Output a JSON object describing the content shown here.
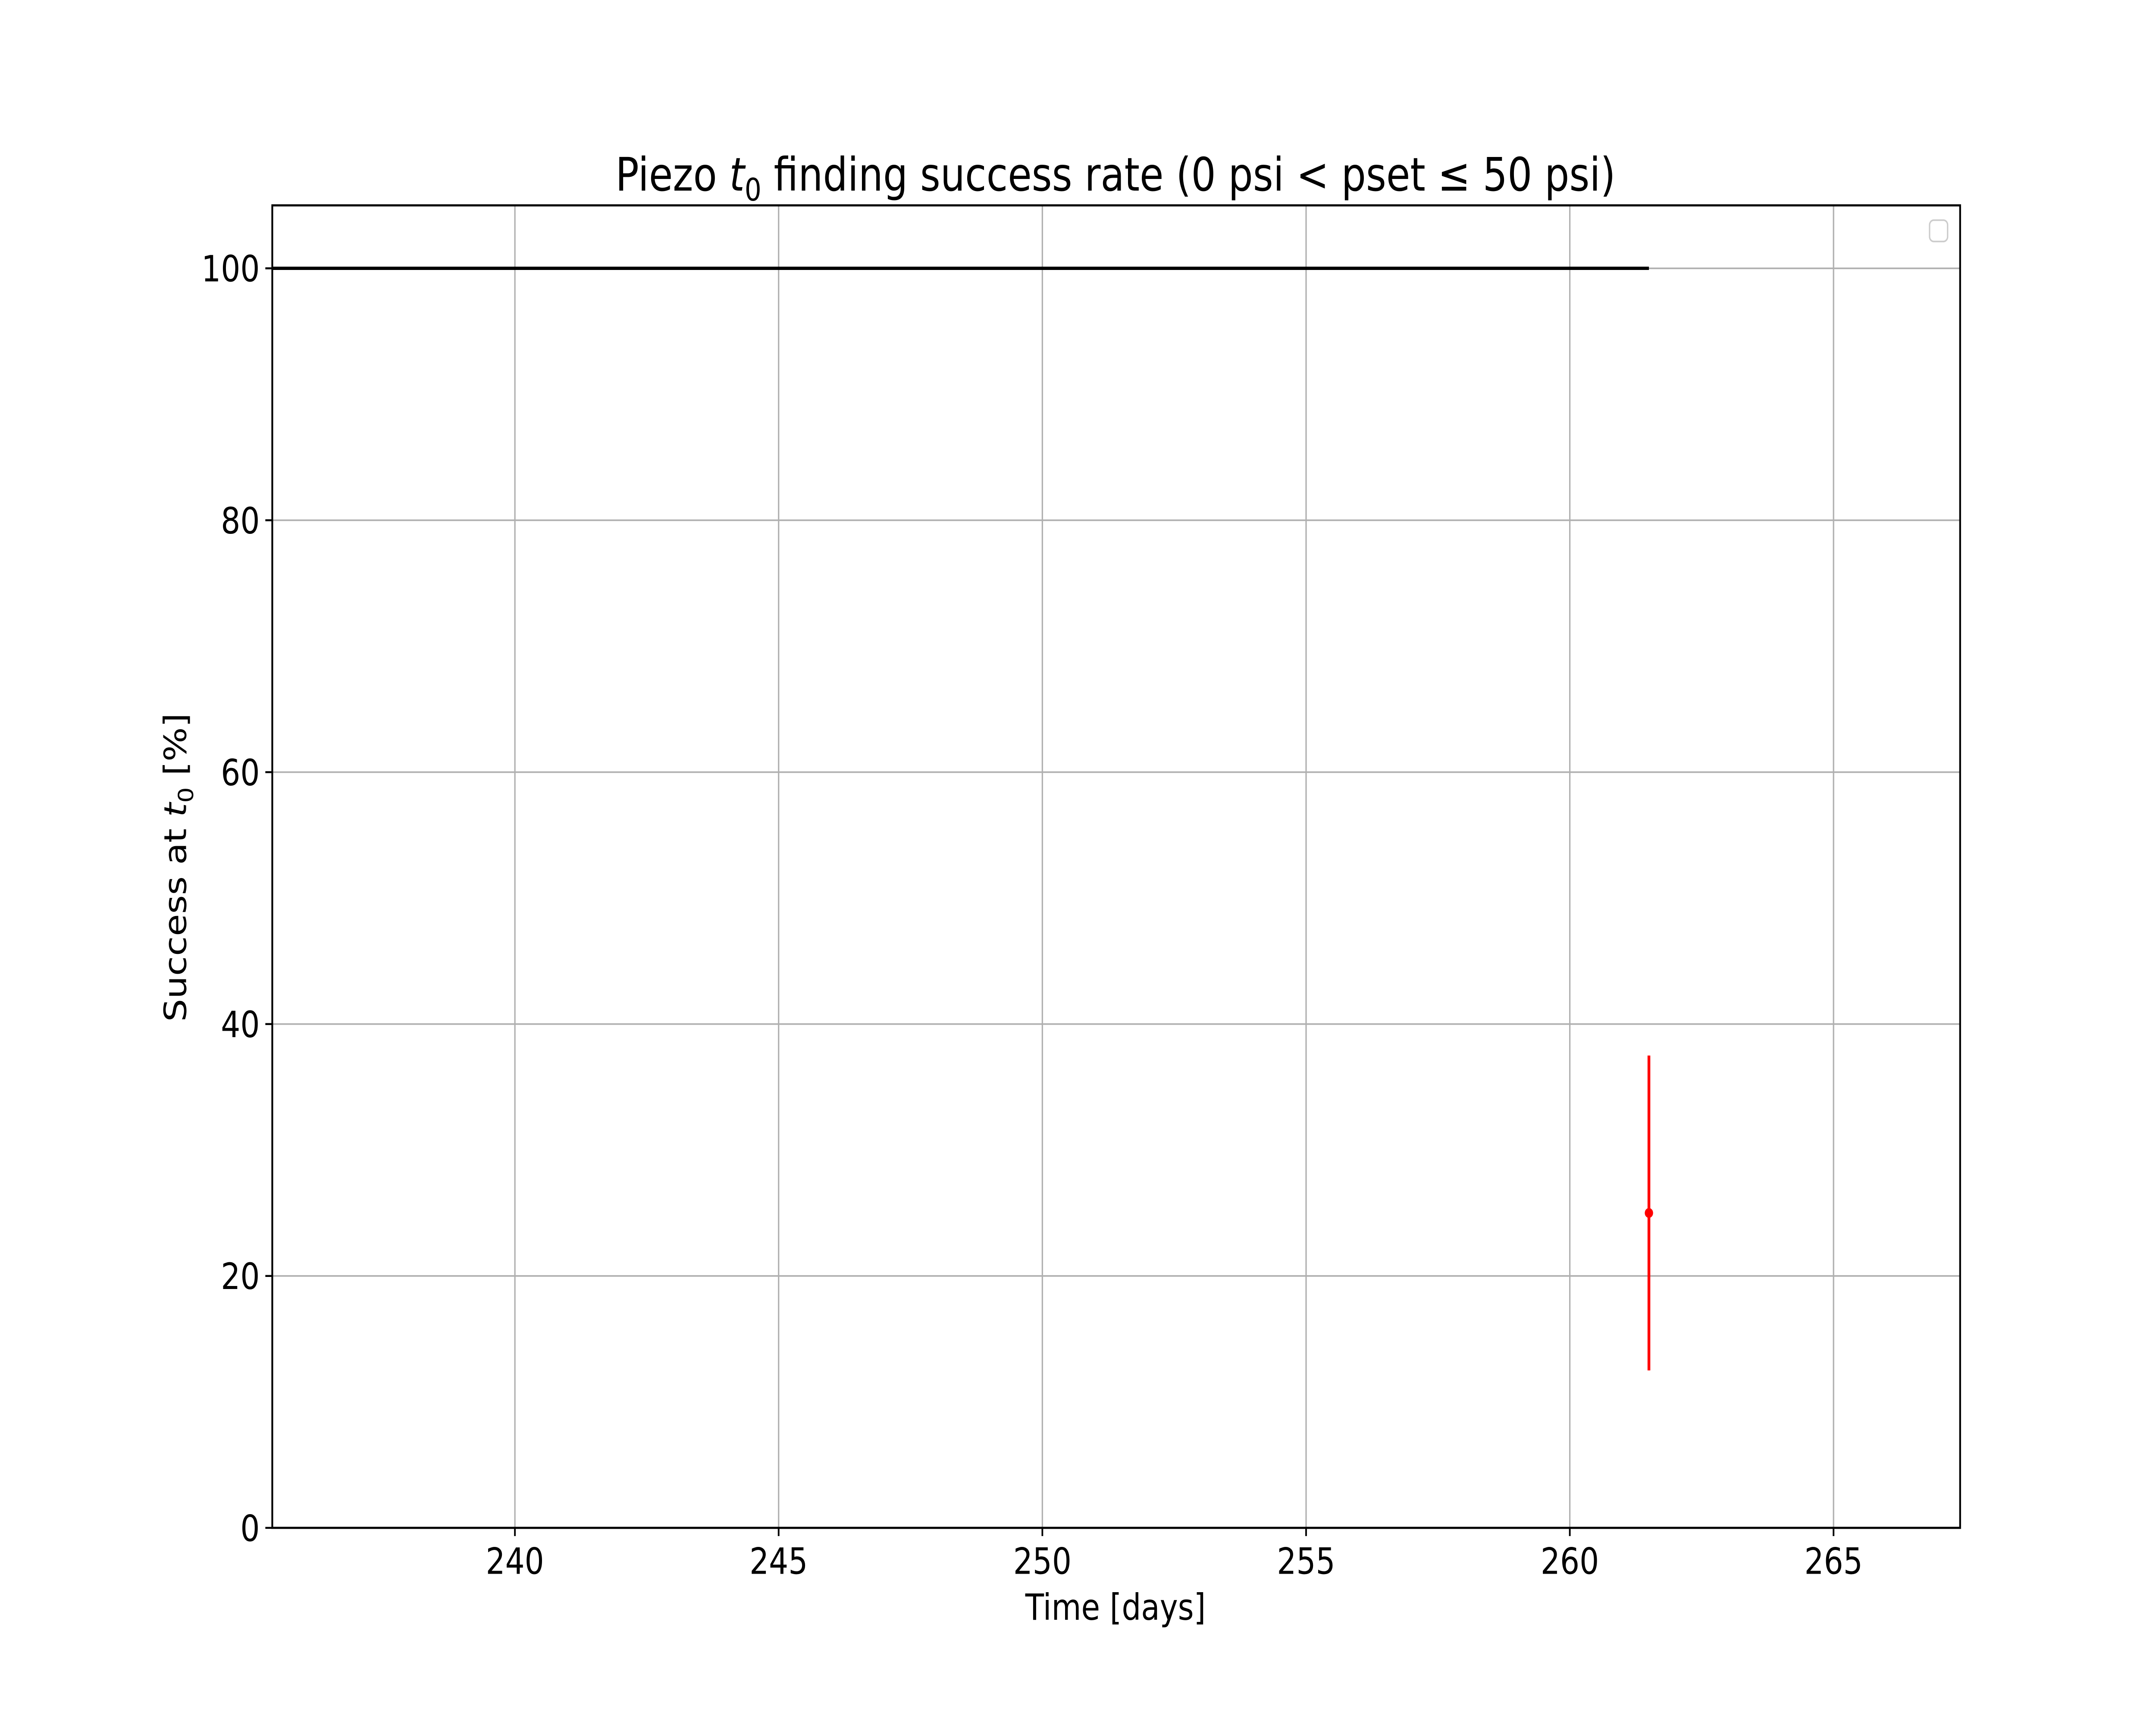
{
  "chart_data": {
    "type": "line",
    "title_parts": {
      "pre": "Piezo ",
      "var": "t",
      "sub": "0",
      "post": " finding success rate (0 psi < pset ≤ 50 psi)"
    },
    "xlabel": "Time [days]",
    "ylabel_parts": {
      "pre": "Success at ",
      "var": "t",
      "sub": "0",
      "post": " [%]"
    },
    "xlim": [
      235.4,
      267.4
    ],
    "ylim": [
      0,
      105
    ],
    "xticks": [
      240,
      245,
      250,
      255,
      260,
      265
    ],
    "yticks": [
      0,
      20,
      40,
      60,
      80,
      100
    ],
    "grid": true,
    "legend": {
      "placement": "top-right",
      "entries": []
    },
    "series": [
      {
        "kind": "line",
        "color": "#000000",
        "x": [
          235.4,
          261.5
        ],
        "y": [
          100,
          100
        ]
      },
      {
        "kind": "errorbar",
        "color": "#ff0000",
        "x": [
          261.5
        ],
        "y": [
          25
        ],
        "yerr": [
          12.5
        ]
      }
    ]
  }
}
